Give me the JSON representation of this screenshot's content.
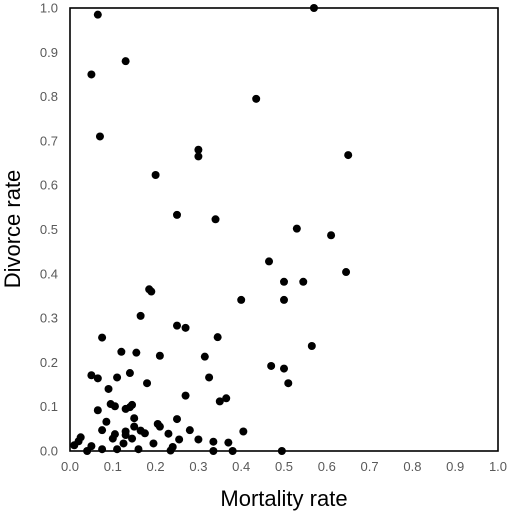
{
  "chart_data": {
    "type": "scatter",
    "title": "",
    "xlabel": "Mortality rate",
    "ylabel": "Divorce rate",
    "xlim": [
      0,
      1
    ],
    "ylim": [
      0,
      1
    ],
    "x_ticks": [
      "0.0",
      "0.1",
      "0.2",
      "0.3",
      "0.4",
      "0.5",
      "0.6",
      "0.7",
      "0.8",
      "0.9",
      "1.0"
    ],
    "y_ticks": [
      "0.0",
      "0.1",
      "0.2",
      "0.3",
      "0.4",
      "0.5",
      "0.6",
      "0.7",
      "0.8",
      "0.9",
      "1.0"
    ],
    "grid": false,
    "marker_color": "#000000",
    "series": [
      {
        "points": [
          [
            0.065,
            0.985
          ],
          [
            0.57,
            1.0
          ],
          [
            0.05,
            0.85
          ],
          [
            0.13,
            0.88
          ],
          [
            0.435,
            0.795
          ],
          [
            0.07,
            0.71
          ],
          [
            0.3,
            0.68
          ],
          [
            0.3,
            0.665
          ],
          [
            0.65,
            0.668
          ],
          [
            0.2,
            0.623
          ],
          [
            0.25,
            0.533
          ],
          [
            0.34,
            0.523
          ],
          [
            0.53,
            0.502
          ],
          [
            0.61,
            0.487
          ],
          [
            0.465,
            0.428
          ],
          [
            0.645,
            0.404
          ],
          [
            0.5,
            0.382
          ],
          [
            0.545,
            0.382
          ],
          [
            0.185,
            0.365
          ],
          [
            0.19,
            0.36
          ],
          [
            0.4,
            0.341
          ],
          [
            0.5,
            0.341
          ],
          [
            0.165,
            0.305
          ],
          [
            0.25,
            0.283
          ],
          [
            0.27,
            0.278
          ],
          [
            0.075,
            0.256
          ],
          [
            0.345,
            0.257
          ],
          [
            0.565,
            0.237
          ],
          [
            0.12,
            0.224
          ],
          [
            0.155,
            0.222
          ],
          [
            0.21,
            0.215
          ],
          [
            0.315,
            0.213
          ],
          [
            0.47,
            0.192
          ],
          [
            0.5,
            0.186
          ],
          [
            0.05,
            0.171
          ],
          [
            0.14,
            0.176
          ],
          [
            0.11,
            0.166
          ],
          [
            0.065,
            0.164
          ],
          [
            0.325,
            0.166
          ],
          [
            0.18,
            0.153
          ],
          [
            0.51,
            0.153
          ],
          [
            0.09,
            0.14
          ],
          [
            0.27,
            0.125
          ],
          [
            0.365,
            0.119
          ],
          [
            0.35,
            0.112
          ],
          [
            0.095,
            0.106
          ],
          [
            0.145,
            0.104
          ],
          [
            0.105,
            0.101
          ],
          [
            0.14,
            0.099
          ],
          [
            0.13,
            0.095
          ],
          [
            0.065,
            0.092
          ],
          [
            0.25,
            0.072
          ],
          [
            0.15,
            0.074
          ],
          [
            0.085,
            0.066
          ],
          [
            0.205,
            0.061
          ],
          [
            0.21,
            0.055
          ],
          [
            0.15,
            0.055
          ],
          [
            0.165,
            0.046
          ],
          [
            0.075,
            0.047
          ],
          [
            0.13,
            0.044
          ],
          [
            0.28,
            0.047
          ],
          [
            0.405,
            0.044
          ],
          [
            0.105,
            0.038
          ],
          [
            0.13,
            0.036
          ],
          [
            0.175,
            0.04
          ],
          [
            0.23,
            0.039
          ],
          [
            0.025,
            0.031
          ],
          [
            0.1,
            0.028
          ],
          [
            0.145,
            0.028
          ],
          [
            0.02,
            0.022
          ],
          [
            0.255,
            0.026
          ],
          [
            0.3,
            0.026
          ],
          [
            0.335,
            0.021
          ],
          [
            0.37,
            0.019
          ],
          [
            0.125,
            0.017
          ],
          [
            0.195,
            0.017
          ],
          [
            0.01,
            0.013
          ],
          [
            0.05,
            0.011
          ],
          [
            0.24,
            0.009
          ],
          [
            0.075,
            0.004
          ],
          [
            0.11,
            0.004
          ],
          [
            0.16,
            0.004
          ],
          [
            0.235,
            0.001
          ],
          [
            0.04,
            0.0
          ],
          [
            0.335,
            0.0
          ],
          [
            0.38,
            0.0
          ],
          [
            0.495,
            0.0
          ]
        ]
      }
    ]
  }
}
